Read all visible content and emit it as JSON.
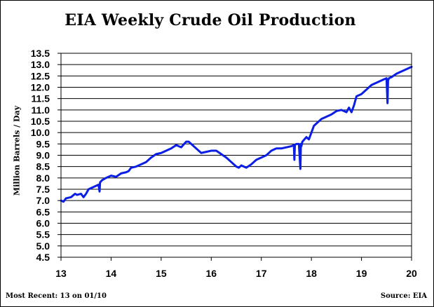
{
  "chart_data": {
    "type": "line",
    "title": "EIA Weekly Crude Oil Production",
    "ylabel": "Million Barrels / Day",
    "xlabel": "",
    "xlim": [
      13,
      20
    ],
    "ylim": [
      4.5,
      13.5
    ],
    "x_ticks": [
      "13",
      "14",
      "15",
      "16",
      "17",
      "18",
      "19",
      "20"
    ],
    "y_ticks": [
      "13.5",
      "13.0",
      "12.5",
      "12.0",
      "11.5",
      "11.0",
      "10.5",
      "10.0",
      "9.5",
      "9.0",
      "8.5",
      "8.0",
      "7.5",
      "7.0",
      "6.5",
      "6.0",
      "5.5",
      "5.0",
      "4.5"
    ],
    "grid": true,
    "series_color": "#0a1ee6",
    "series": [
      {
        "x": [
          13.0,
          13.05,
          13.1,
          13.2,
          13.28,
          13.32,
          13.4,
          13.45,
          13.5,
          13.55,
          13.6,
          13.7,
          13.75,
          13.77,
          13.78,
          13.82,
          13.9,
          14.0,
          14.1,
          14.2,
          14.3,
          14.35,
          14.4,
          14.5,
          14.6,
          14.7,
          14.8,
          14.9,
          15.0,
          15.1,
          15.2,
          15.3,
          15.35,
          15.4,
          15.5,
          15.55,
          15.6,
          15.7,
          15.8,
          15.9,
          16.0,
          16.1,
          16.2,
          16.3,
          16.4,
          16.5,
          16.55,
          16.6,
          16.7,
          16.8,
          16.9,
          17.0,
          17.1,
          17.2,
          17.3,
          17.4,
          17.5,
          17.6,
          17.65,
          17.66,
          17.67,
          17.7,
          17.75,
          17.78,
          17.79,
          17.8,
          17.82,
          17.9,
          17.95,
          18.0,
          18.05,
          18.1,
          18.2,
          18.3,
          18.4,
          18.5,
          18.6,
          18.7,
          18.75,
          18.8,
          18.85,
          18.9,
          19.0,
          19.1,
          19.2,
          19.3,
          19.4,
          19.5,
          19.52,
          19.53,
          19.55,
          19.6,
          19.7,
          19.8,
          19.9,
          20.0
        ],
        "y": [
          7.0,
          6.95,
          7.1,
          7.15,
          7.3,
          7.25,
          7.3,
          7.15,
          7.3,
          7.5,
          7.55,
          7.65,
          7.7,
          7.4,
          7.8,
          7.9,
          8.0,
          8.1,
          8.05,
          8.2,
          8.25,
          8.3,
          8.45,
          8.5,
          8.6,
          8.7,
          8.9,
          9.05,
          9.1,
          9.2,
          9.3,
          9.45,
          9.4,
          9.35,
          9.6,
          9.6,
          9.5,
          9.3,
          9.1,
          9.15,
          9.2,
          9.2,
          9.05,
          8.9,
          8.7,
          8.5,
          8.45,
          8.55,
          8.45,
          8.6,
          8.8,
          8.9,
          9.0,
          9.2,
          9.3,
          9.3,
          9.35,
          9.4,
          9.45,
          8.8,
          9.45,
          9.5,
          9.5,
          8.4,
          9.5,
          9.4,
          9.6,
          9.8,
          9.7,
          10.0,
          10.3,
          10.4,
          10.6,
          10.7,
          10.8,
          10.95,
          11.0,
          10.9,
          11.1,
          10.9,
          11.2,
          11.6,
          11.7,
          11.9,
          12.1,
          12.2,
          12.3,
          12.4,
          11.3,
          12.3,
          12.4,
          12.45,
          12.6,
          12.7,
          12.8,
          12.9
        ]
      }
    ]
  },
  "footer": {
    "left": "Most Recent: 13 on 01/10",
    "right": "Source: EIA"
  }
}
